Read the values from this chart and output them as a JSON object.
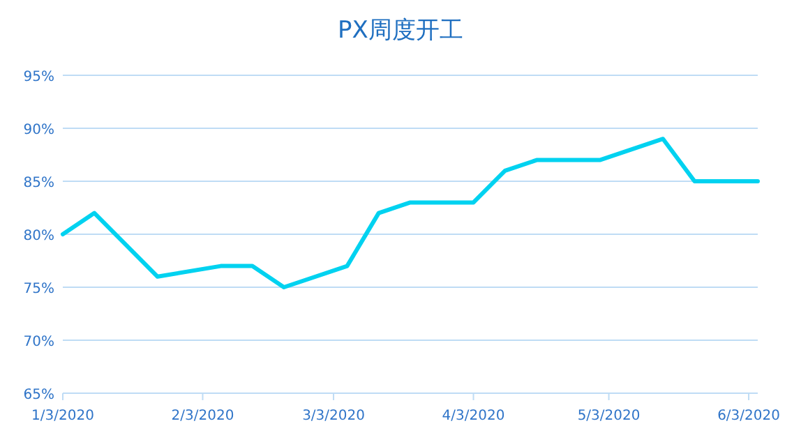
{
  "chart_data": {
    "type": "line",
    "title": "PX周度开工",
    "x": [
      "2020-01-03",
      "2020-01-10",
      "2020-01-24",
      "2020-02-07",
      "2020-02-14",
      "2020-02-21",
      "2020-03-06",
      "2020-03-13",
      "2020-03-20",
      "2020-04-03",
      "2020-04-10",
      "2020-04-17",
      "2020-05-01",
      "2020-05-15",
      "2020-05-22",
      "2020-06-05"
    ],
    "series": [
      {
        "color": "#00d2f0",
        "values": [
          80,
          82,
          76,
          77,
          77,
          75,
          77,
          82,
          83,
          83,
          86,
          87,
          87,
          89,
          85,
          85
        ]
      }
    ],
    "xlim": [
      "2020-01-03",
      "2020-06-05"
    ],
    "xticks": [
      {
        "value": "2020-01-03",
        "label": "1/3/2020"
      },
      {
        "value": "2020-02-03",
        "label": "2/3/2020"
      },
      {
        "value": "2020-03-03",
        "label": "3/3/2020"
      },
      {
        "value": "2020-04-03",
        "label": "4/3/2020"
      },
      {
        "value": "2020-05-03",
        "label": "5/3/2020"
      },
      {
        "value": "2020-06-03",
        "label": "6/3/2020"
      }
    ],
    "ylim": [
      65,
      95
    ],
    "yticks": [
      {
        "value": 65,
        "label": "65%"
      },
      {
        "value": 70,
        "label": "70%"
      },
      {
        "value": 75,
        "label": "75%"
      },
      {
        "value": 80,
        "label": "80%"
      },
      {
        "value": 85,
        "label": "85%"
      },
      {
        "value": 90,
        "label": "90%"
      },
      {
        "value": 95,
        "label": "95%"
      }
    ],
    "grid": "y",
    "marker": "none",
    "line_style": "solid"
  }
}
